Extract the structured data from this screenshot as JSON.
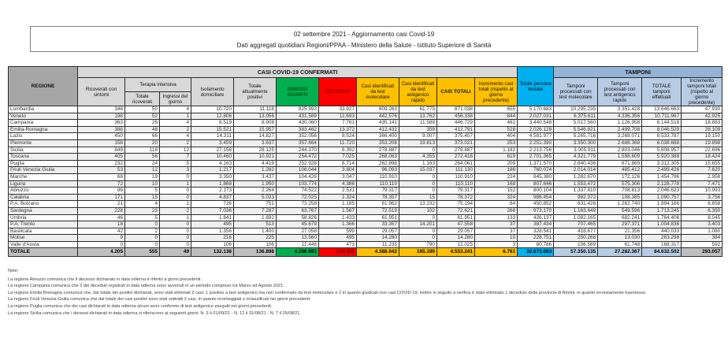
{
  "header": {
    "line1": "02 settembre 2021 - Aggiornamento casi Covid-19",
    "line2": "Dati aggregati quotidiani Regioni/PPAA - Ministero della Salute - Istituto Superiore di Sanità"
  },
  "table": {
    "band_confermati": "CASI COVID-19 CONFERMATI",
    "band_tamponi": "TAMPONI",
    "col_regione": "REGIONE",
    "col_terapia_intensiva": "Terapia intensiva",
    "columns": [
      "Ricoverati con sintomi",
      "Totale ricoverati",
      "Ingressi del giorno",
      "Isolamento domiciliare",
      "Totale attualmente positivi",
      "DIMESSI GUARITI",
      "DECEDUTI",
      "Casi identificati da test molecolare",
      "Casi identificati da test antigenico rapido",
      "CASI TOTALI",
      "Incremento casi totali (rispetto al giorno precedente)",
      "Totale persone testate",
      "Tamponi processati con test molecolare",
      "Tamponi processati con test antigenico rapido",
      "TOTALE tamponi effettuati",
      "Incremento tamponi totali (rispetto al giorno precedente)"
    ],
    "rows": [
      [
        "Lombardia",
        "348",
        "50",
        "4",
        "10.720",
        "11.118",
        "825.993",
        "33.927",
        "809.263",
        "61.775",
        "871.038",
        "655",
        "5.170.683",
        "10.295.235",
        "3.351.428",
        "13.646.663",
        "47.930"
      ],
      [
        "Veneto",
        "198",
        "52",
        "1",
        "12.806",
        "13.056",
        "431.589",
        "11.693",
        "442.576",
        "13.762",
        "456.338",
        "844",
        "2.027.031",
        "6.375.611",
        "4.336.356",
        "10.711.967",
        "42.925"
      ],
      [
        "Campania",
        "363",
        "26",
        "4",
        "8.519",
        "8.908",
        "430.060",
        "7.761",
        "435.141",
        "11.588",
        "446.729",
        "461",
        "3.440.548",
        "5.017.560",
        "1.126.958",
        "6.144.518",
        "18.883"
      ],
      [
        "Emilia-Romagna",
        "388",
        "48",
        "2",
        "15.521",
        "15.957",
        "383.462",
        "13.372",
        "412.432",
        "359",
        "412.791",
        "528",
        "2.026.128",
        "5.546.821",
        "2.499.708",
        "8.046.529",
        "28.109"
      ],
      [
        "Lazio",
        "450",
        "66",
        "4",
        "14.311",
        "14.827",
        "352.056",
        "8.524",
        "366.400",
        "9.007",
        "375.407",
        "404",
        "4.581.977",
        "5.265.716",
        "3.268.071",
        "8.533.787",
        "19.150"
      ],
      [
        "Piemonte",
        "158",
        "20",
        "2",
        "3.459",
        "3.637",
        "357.664",
        "11.720",
        "353.208",
        "19.813",
        "373.021",
        "253",
        "2.251.390",
        "3.350.300",
        "2.688.368",
        "6.038.668",
        "19.898"
      ],
      [
        "Sicilia",
        "849",
        "118",
        "12",
        "27.158",
        "28.125",
        "244.370",
        "6.392",
        "278.887",
        "0",
        "278.887",
        "1.182",
        "2.213.756",
        "3.005.911",
        "2.803.046",
        "5.808.957",
        "22.696"
      ],
      [
        "Toscana",
        "405",
        "56",
        "7",
        "10.460",
        "10.921",
        "254.472",
        "7.025",
        "268.063",
        "4.355",
        "272.418",
        "619",
        "2.701.365",
        "4.321.779",
        "1.598.609",
        "5.920.388",
        "18.424"
      ],
      [
        "Puglia",
        "232",
        "24",
        "5",
        "4.163",
        "4.419",
        "252.928",
        "6.714",
        "262.898",
        "1.163",
        "264.061",
        "209",
        "1.371.570",
        "2.640.436",
        "671.869",
        "3.312.305",
        "15.655"
      ],
      [
        "Friuli Venezia Giulia",
        "53",
        "12",
        "3",
        "1.217",
        "1.282",
        "106.044",
        "3.804",
        "96.093",
        "15.037",
        "111.130",
        "186",
        "760.074",
        "2.014.014",
        "485.412",
        "2.499.426",
        "7.620"
      ],
      [
        "Marche",
        "68",
        "19",
        "0",
        "3.350",
        "3.437",
        "104.426",
        "3.047",
        "110.910",
        "0",
        "110.910",
        "224",
        "845.380",
        "1.282.670",
        "172.126",
        "1.454.796",
        "2.958"
      ],
      [
        "Liguria",
        "72",
        "10",
        "1",
        "1.868",
        "1.950",
        "103.774",
        "4.386",
        "110.110",
        "0",
        "110.110",
        "168",
        "807.646",
        "1.553.472",
        "575.306",
        "2.128.778",
        "7.471"
      ],
      [
        "Abruzzo",
        "86",
        "5",
        "0",
        "2.173",
        "2.264",
        "74.522",
        "2.531",
        "79.317",
        "0",
        "79.317",
        "152",
        "800.104",
        "1.337.810",
        "708.813",
        "2.046.623",
        "10.993"
      ],
      [
        "Calabria",
        "171",
        "15",
        "0",
        "4.837",
        "5.023",
        "72.025",
        "1.324",
        "78.357",
        "15",
        "78.372",
        "324",
        "986.454",
        "982.372",
        "108.385",
        "1.090.757",
        "3.756"
      ],
      [
        "P.A. Bolzano",
        "21",
        "4",
        "1",
        "726",
        "751",
        "73.258",
        "1.185",
        "61.962",
        "13.232",
        "75.194",
        "64",
        "450.852",
        "631.426",
        "1.262.740",
        "1.894.166",
        "6.658"
      ],
      [
        "Sardegna",
        "228",
        "23",
        "2",
        "7.036",
        "7.287",
        "63.767",
        "1.567",
        "72.519",
        "102",
        "72.621",
        "268",
        "973.170",
        "1.163.649",
        "549.596",
        "1.713.245",
        "6.350"
      ],
      [
        "Umbria",
        "46",
        "5",
        "1",
        "1.641",
        "1.692",
        "58.826",
        "1.433",
        "61.951",
        "0",
        "61.951",
        "133",
        "426.137",
        "1.082.165",
        "682.241",
        "1.764.406",
        "8.045"
      ],
      [
        "P.A. Trento",
        "18",
        "0",
        "0",
        "495",
        "513",
        "45.679",
        "1.366",
        "33.357",
        "14.201",
        "47.558",
        "37",
        "387.434",
        "707.465",
        "297.371",
        "1.004.836",
        "3.403"
      ],
      [
        "Basilicata",
        "42",
        "2",
        "0",
        "1.356",
        "1.400",
        "27.058",
        "599",
        "29.057",
        "0",
        "29.057",
        "37",
        "328.541",
        "418.677",
        "21.356",
        "440.033",
        "1.080"
      ],
      [
        "Molise",
        "9",
        "0",
        "0",
        "216",
        "225",
        "13.560",
        "495",
        "14.280",
        "0",
        "14.280",
        "10",
        "228.751",
        "250.268",
        "13.030",
        "263.298",
        "384"
      ],
      [
        "Valle d'Aosta",
        "0",
        "0",
        "0",
        "106",
        "106",
        "11.446",
        "473",
        "11.235",
        "790",
        "12.025",
        "3",
        "80.786",
        "106.569",
        "61.748",
        "168.317",
        "592"
      ]
    ],
    "total_row": [
      "TOTALE",
      "4.205",
      "555",
      "49",
      "132.138",
      "136.898",
      "4.286.991",
      "129.352",
      "4.388.042",
      "165.199",
      "4.553.241",
      "6.761",
      "32.673.083",
      "57.350.135",
      "27.282.367",
      "84.632.502",
      "293.057"
    ]
  },
  "notes": {
    "title": "Note:",
    "items": [
      "La regione Abruzzo comunica che il decesso dichiarato in data odierna è riferito a giorni precedenti.",
      "La regione Campania comunica che 3 dei deceduti registrati in data odierna sono avvenuti in un periodo compreso tra Marzo ed Agosto 2021.",
      "La regione Emilia Romagna comunica che, dal totale dei positivi dichiarati, sono stati eliminati 2 casi: 1 positivo a test antigenico ma non confermato da test molecolare e 2 in quanto giudicati non casi COVID-19; inoltre in seguito a verifica è stato eliminato 1 deceduto della provincia di Rimini, in quanto erroneamente trasmesso.",
      "La regione Friuli Venezia Giulia comunica che dal totale dei casi positivi sono stati sottratti 2 casi, in quanto riconteggiati o riclassificati nei giorni precedenti.",
      "La regione Puglia comunica che dei casi dichiarati in data odierna alcuni sono conferme di test antigenico eseguiti nei giorni precedenti.",
      "La regione Sicilia comunica che i decessi dichiarati in data odierna si riferiscono ai seguenti giorni: N. 3 il 01/09/21 - N. 12 il 31/08/21 - N. 7 il 25/08/21."
    ]
  },
  "colors": {
    "header_gray": "#a6a6a6",
    "band_gray": "#d9d9d9",
    "green": "#00b050",
    "red": "#ff0000",
    "amber": "#ffc000",
    "cyan": "#00b0f0",
    "tamponi_band_blue": "#95b3d7",
    "tamponi_sub_blue": "#b8cce4",
    "total_row_gray": "#bfbfbf",
    "row_alt": "#efefef"
  }
}
